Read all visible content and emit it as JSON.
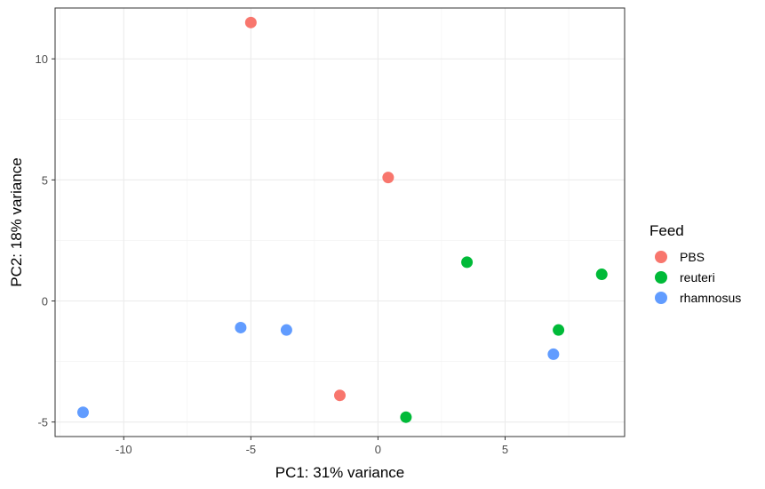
{
  "chart_data": {
    "type": "scatter",
    "title": "",
    "xlabel": "PC1: 31% variance",
    "ylabel": "PC2: 18% variance",
    "xlim": [
      -12.7,
      9.7
    ],
    "ylim": [
      -5.6,
      12.1
    ],
    "x_ticks": [
      -10,
      -5,
      0,
      5
    ],
    "y_ticks": [
      -5,
      0,
      5,
      10
    ],
    "grid": true,
    "legend": {
      "title": "Feed",
      "position": "right"
    },
    "series": [
      {
        "name": "PBS",
        "color": "#F8766D",
        "points": [
          {
            "x": -5.0,
            "y": 11.5
          },
          {
            "x": 0.4,
            "y": 5.1
          },
          {
            "x": -1.5,
            "y": -3.9
          }
        ]
      },
      {
        "name": "reuteri",
        "color": "#00BA38",
        "points": [
          {
            "x": 3.5,
            "y": 1.6
          },
          {
            "x": 8.8,
            "y": 1.1
          },
          {
            "x": 7.1,
            "y": -1.2
          },
          {
            "x": 1.1,
            "y": -4.8
          }
        ]
      },
      {
        "name": "rhamnosus",
        "color": "#619CFF",
        "points": [
          {
            "x": -5.4,
            "y": -1.1
          },
          {
            "x": -3.6,
            "y": -1.2
          },
          {
            "x": 6.9,
            "y": -2.2
          },
          {
            "x": -11.6,
            "y": -4.6
          }
        ]
      }
    ]
  }
}
